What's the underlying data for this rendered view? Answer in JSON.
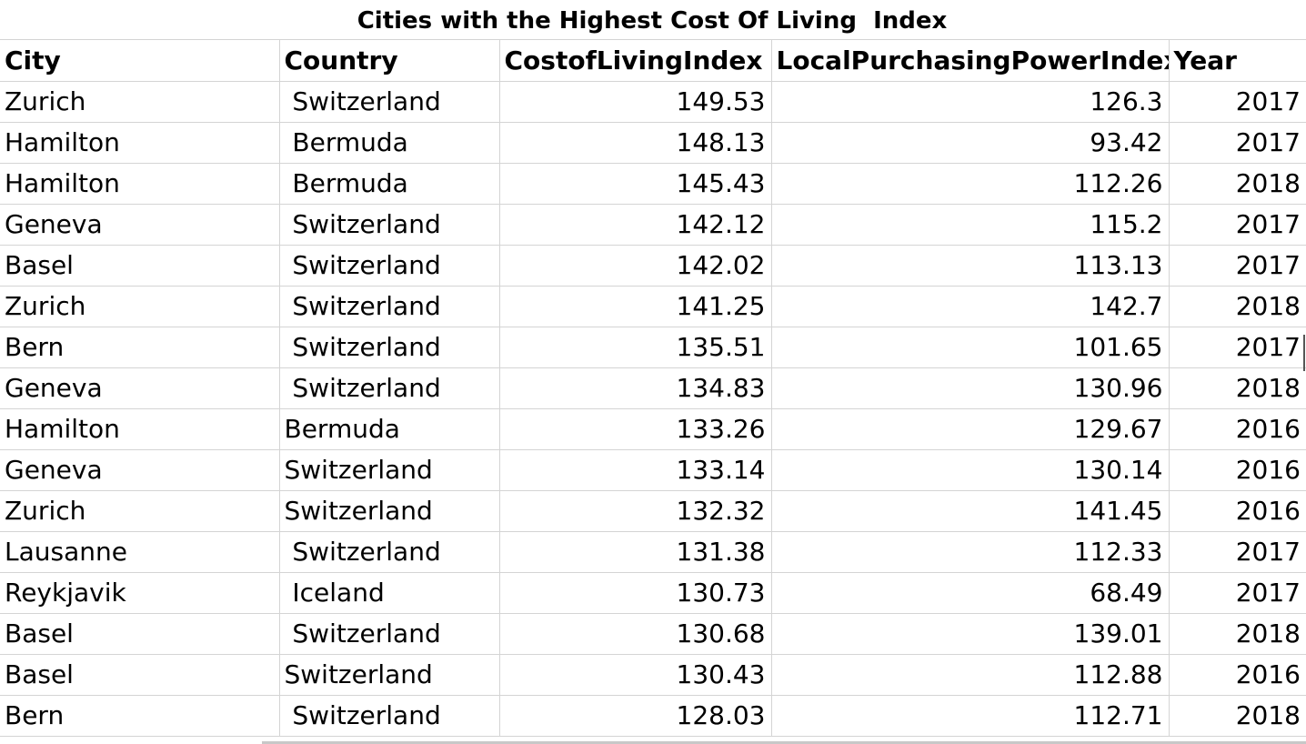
{
  "title": "Cities with the Highest Cost Of Living  Index",
  "headers": {
    "city": "City",
    "country": "Country",
    "cost": "CostofLivingIndex",
    "lpp": "LocalPurchasingPowerIndex",
    "year": "Year"
  },
  "rows": [
    {
      "city": "Zurich",
      "country": " Switzerland",
      "cost": "149.53",
      "lpp": "126.3",
      "year": "2017"
    },
    {
      "city": "Hamilton",
      "country": " Bermuda",
      "cost": "148.13",
      "lpp": "93.42",
      "year": "2017"
    },
    {
      "city": "Hamilton",
      "country": " Bermuda",
      "cost": "145.43",
      "lpp": "112.26",
      "year": "2018"
    },
    {
      "city": "Geneva",
      "country": " Switzerland",
      "cost": "142.12",
      "lpp": "115.2",
      "year": "2017"
    },
    {
      "city": "Basel",
      "country": " Switzerland",
      "cost": "142.02",
      "lpp": "113.13",
      "year": "2017"
    },
    {
      "city": "Zurich",
      "country": " Switzerland",
      "cost": "141.25",
      "lpp": "142.7",
      "year": "2018"
    },
    {
      "city": "Bern",
      "country": " Switzerland",
      "cost": "135.51",
      "lpp": "101.65",
      "year": "2017"
    },
    {
      "city": "Geneva",
      "country": " Switzerland",
      "cost": "134.83",
      "lpp": "130.96",
      "year": "2018"
    },
    {
      "city": "Hamilton",
      "country": "Bermuda",
      "cost": "133.26",
      "lpp": "129.67",
      "year": "2016"
    },
    {
      "city": "Geneva",
      "country": "Switzerland",
      "cost": "133.14",
      "lpp": "130.14",
      "year": "2016"
    },
    {
      "city": "Zurich",
      "country": "Switzerland",
      "cost": "132.32",
      "lpp": "141.45",
      "year": "2016"
    },
    {
      "city": "Lausanne",
      "country": " Switzerland",
      "cost": "131.38",
      "lpp": "112.33",
      "year": "2017"
    },
    {
      "city": "Reykjavik",
      "country": " Iceland",
      "cost": "130.73",
      "lpp": "68.49",
      "year": "2017"
    },
    {
      "city": "Basel",
      "country": " Switzerland",
      "cost": "130.68",
      "lpp": "139.01",
      "year": "2018"
    },
    {
      "city": "Basel",
      "country": "Switzerland",
      "cost": "130.43",
      "lpp": "112.88",
      "year": "2016"
    },
    {
      "city": "Bern",
      "country": " Switzerland",
      "cost": "128.03",
      "lpp": "112.71",
      "year": "2018"
    }
  ]
}
